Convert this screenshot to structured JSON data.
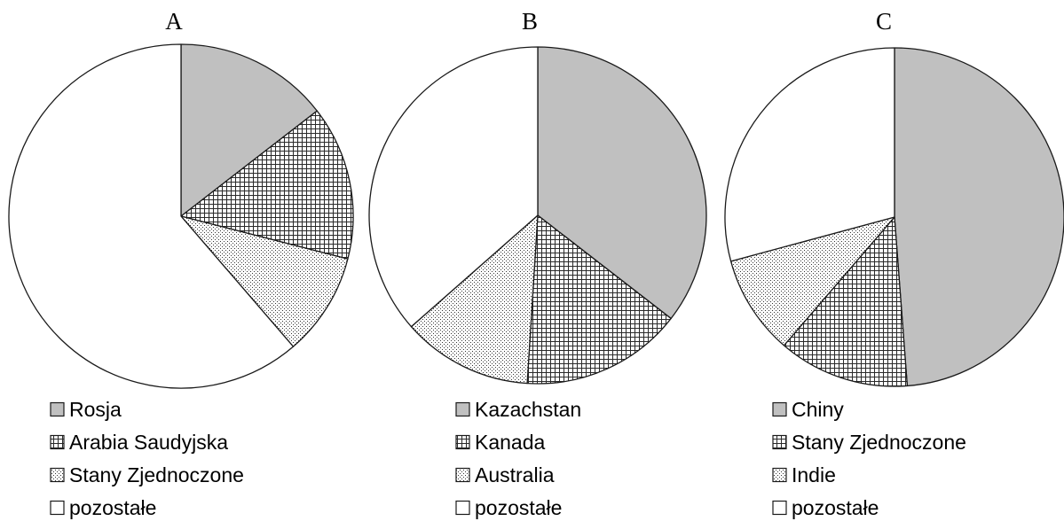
{
  "chart_data": [
    {
      "type": "pie",
      "title": "A",
      "categories": [
        "Rosja",
        "Arabia Saudyjska",
        "Stany Zjednoczone",
        "pozostałe"
      ],
      "values": [
        14.5,
        14.5,
        9.7,
        61.3
      ],
      "start": "12 o'clock",
      "direction": "clockwise"
    },
    {
      "type": "pie",
      "title": "B",
      "categories": [
        "Kazachstan",
        "Kanada",
        "Australia",
        "pozostałe"
      ],
      "values": [
        35.5,
        15.5,
        12.5,
        36.5
      ],
      "start": "12 o'clock",
      "direction": "clockwise"
    },
    {
      "type": "pie",
      "title": "C",
      "categories": [
        "Chiny",
        "Stany Zjednoczone",
        "Indie",
        "pozostałe"
      ],
      "values": [
        48.8,
        12.5,
        9.5,
        29.2
      ],
      "start": "12 o'clock",
      "direction": "clockwise"
    }
  ],
  "colors": {
    "slice_1": "#c0c0c0",
    "slice_4": "#ffffff",
    "outline": "#1a1a1a"
  },
  "slice_fills": [
    "solid-gray",
    "square-grid",
    "fine-dots",
    "white"
  ]
}
